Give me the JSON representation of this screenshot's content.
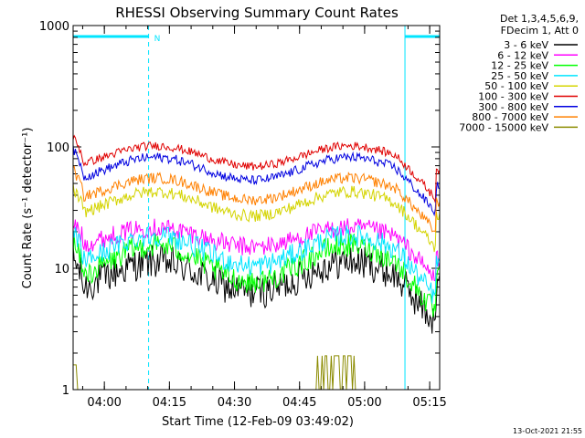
{
  "chart_data": {
    "type": "line",
    "title": "RHESSI Observing Summary Count Rates",
    "xlabel": "Start Time (12-Feb-09 03:49:02)",
    "ylabel": "Count Rate (s⁻¹ detector⁻¹)",
    "yscale": "log",
    "ylim": [
      1,
      1000
    ],
    "yticks": [
      {
        "value": 1,
        "label": "1"
      },
      {
        "value": 10,
        "label": "10"
      },
      {
        "value": 100,
        "label": "100"
      },
      {
        "value": 1000,
        "label": "1000"
      }
    ],
    "xlim_minutes": [
      3.8,
      88.3
    ],
    "xticks": [
      {
        "minute": 11,
        "label": "04:00"
      },
      {
        "minute": 26,
        "label": "04:15"
      },
      {
        "minute": 41,
        "label": "04:30"
      },
      {
        "minute": 56,
        "label": "04:45"
      },
      {
        "minute": 71,
        "label": "05:00"
      },
      {
        "minute": 86,
        "label": "05:15"
      }
    ],
    "legend_header": [
      "Det 1,3,4,5,6,9,",
      "FDecim 1, Att 0"
    ],
    "legend_position": "right",
    "footer_date": "13-Oct-2021 21:55",
    "night_label": "N",
    "night_bands": [
      {
        "start": 3.8,
        "end": 21.2
      },
      {
        "start": 80.3,
        "end": 98.0
      }
    ],
    "saa_bands": [],
    "flare_peak_minute": 91.5,
    "series": [
      {
        "name": "3 - 6 keV",
        "color": "#000000",
        "base": 8.5,
        "amp": 0.25,
        "jitter": 0.14,
        "peak": 55,
        "low": 6.5,
        "early_bump": 12
      },
      {
        "name": "6 - 12 keV",
        "color": "#ff00ff",
        "base": 18,
        "amp": 0.16,
        "jitter": 0.08,
        "peak": 80,
        "low": 12,
        "early_bump": 24
      },
      {
        "name": "12 - 25 keV",
        "color": "#00ff00",
        "base": 11,
        "amp": 0.3,
        "jitter": 0.1,
        "peak": 70,
        "low": 8,
        "early_bump": 16
      },
      {
        "name": "25 - 50 keV",
        "color": "#00e5ff",
        "base": 14,
        "amp": 0.25,
        "jitter": 0.09,
        "peak": 95,
        "low": 11,
        "early_bump": 20
      },
      {
        "name": "50 - 100 keV",
        "color": "#d4d400",
        "base": 34,
        "amp": 0.2,
        "jitter": 0.05,
        "peak": 105,
        "low": 27,
        "early_bump": 45
      },
      {
        "name": "100 - 300 keV",
        "color": "#e00000",
        "base": 84,
        "amp": 0.17,
        "jitter": 0.035,
        "peak": 250,
        "low": 65,
        "early_bump": 120
      },
      {
        "name": "300 - 800 keV",
        "color": "#0000e0",
        "base": 66,
        "amp": 0.19,
        "jitter": 0.04,
        "peak": 160,
        "low": 47,
        "early_bump": 95
      },
      {
        "name": "800 - 7000 keV",
        "color": "#ff8000",
        "base": 45,
        "amp": 0.18,
        "jitter": 0.045,
        "peak": 120,
        "low": 35,
        "early_bump": 65
      },
      {
        "name": "7000 - 15000 keV",
        "color": "#8b8b00",
        "base": 1,
        "amp": 0,
        "jitter": 0,
        "peak": 6,
        "low": 1,
        "early_bump": 1
      }
    ]
  }
}
